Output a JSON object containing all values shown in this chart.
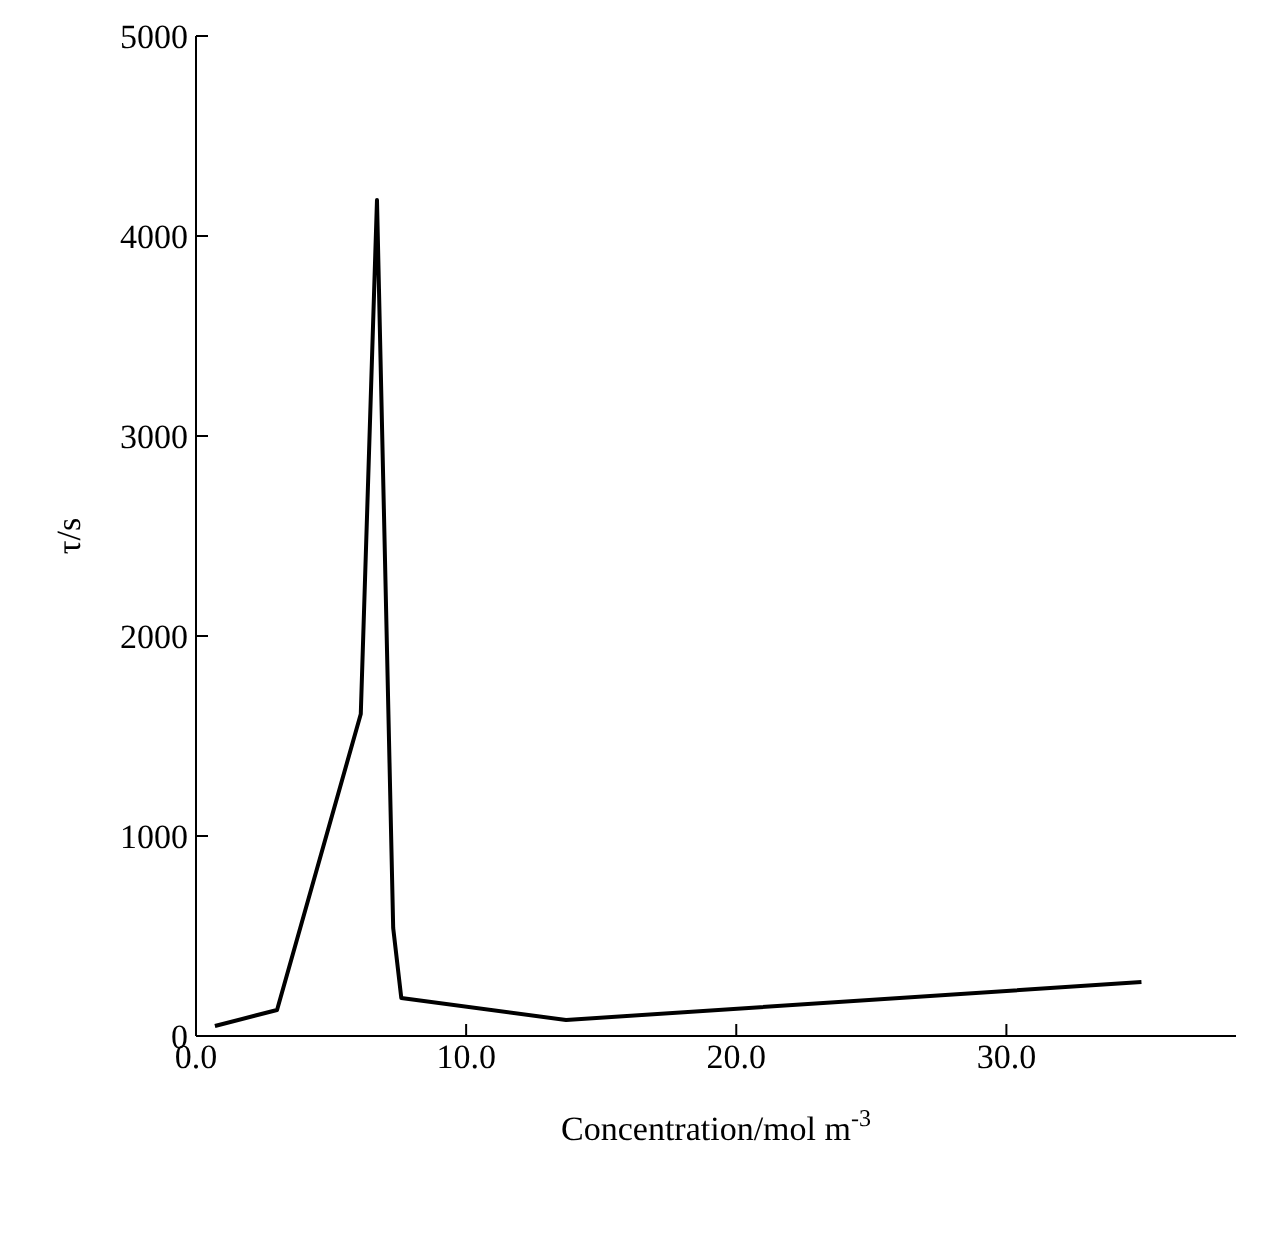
{
  "chart_data": {
    "type": "line",
    "xlabel": "Concentration/mol m$^{-3}$",
    "ylabel": "τ/s",
    "x": [
      0.7,
      3.0,
      6.1,
      6.7,
      7.3,
      7.6,
      13.7,
      35.0
    ],
    "series": [
      {
        "color": "#000000",
        "values": [
          50,
          130,
          1610,
          4180,
          540,
          190,
          80,
          270
        ]
      }
    ],
    "xlim": [
      0,
      38.5
    ],
    "xticks": [
      {
        "value": 0,
        "label": "0.0"
      },
      {
        "value": 10,
        "label": "10.0"
      },
      {
        "value": 20,
        "label": "20.0"
      },
      {
        "value": 30,
        "label": "30.0"
      }
    ],
    "ylim": [
      0,
      5000
    ],
    "yticks": [
      0,
      1000,
      2000,
      3000,
      4000,
      5000
    ],
    "grid": false,
    "legend": false,
    "marker": "none",
    "line_style": "solid"
  }
}
